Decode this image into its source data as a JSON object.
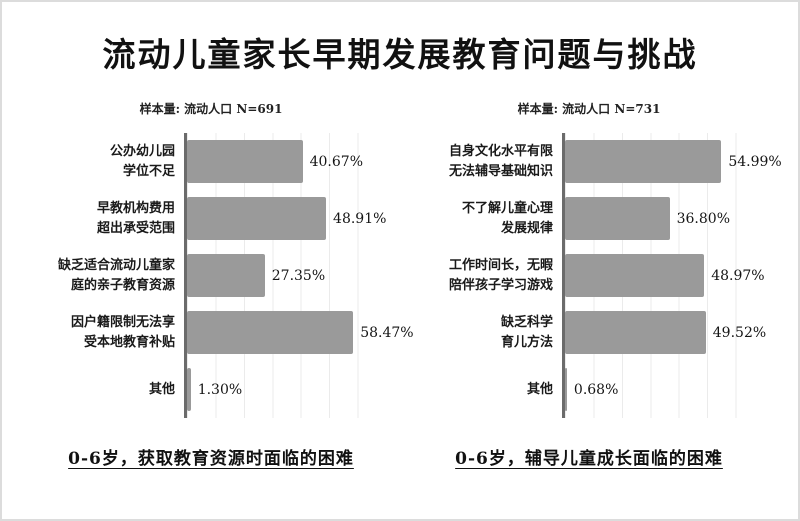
{
  "title": "流动儿童家长早期发展教育问题与挑战",
  "bar_color": "#9a9a9a",
  "chart_data": [
    {
      "type": "bar",
      "orientation": "horizontal",
      "title": "样本量: 流动人口 N=691",
      "caption": "0-6岁，获取教育资源时面临的困难",
      "categories": [
        "公办幼儿园学位不足",
        "早教机构费用超出承受范围",
        "缺乏适合流动儿童家庭的亲子教育资源",
        "因户籍限制无法享受本地教育补贴",
        "其他"
      ],
      "categories_display": [
        "公办幼儿园\n学位不足",
        "早教机构费用\n超出承受范围",
        "缺乏适合流动儿童家\n庭的亲子教育资源",
        "因户籍限制无法享\n受本地教育补贴",
        "其他"
      ],
      "values": [
        40.67,
        48.91,
        27.35,
        58.47,
        1.3
      ],
      "value_labels": [
        "40.67%",
        "48.91%",
        "27.35%",
        "58.47%",
        "1.30%"
      ],
      "xlim": [
        0,
        70
      ],
      "grid": true,
      "grid_interval_pct": 10,
      "bar_color": "#9a9a9a",
      "legend": "none"
    },
    {
      "type": "bar",
      "orientation": "horizontal",
      "title": "样本量: 流动人口 N=731",
      "caption": "0-6岁，辅导儿童成长面临的困难",
      "categories": [
        "自身文化水平有限无法辅导基础知识",
        "不了解儿童心理发展规律",
        "工作时间长，无暇陪伴孩子学习游戏",
        "缺乏科学育儿方法",
        "其他"
      ],
      "categories_display": [
        "自身文化水平有限\n无法辅导基础知识",
        "不了解儿童心理\n发展规律",
        "工作时间长，无暇\n陪伴孩子学习游戏",
        "缺乏科学\n育儿方法",
        "其他"
      ],
      "values": [
        54.99,
        36.8,
        48.97,
        49.52,
        0.68
      ],
      "value_labels": [
        "54.99%",
        "36.80%",
        "48.97%",
        "49.52%",
        "0.68%"
      ],
      "xlim": [
        0,
        70
      ],
      "grid": true,
      "grid_interval_pct": 10,
      "bar_color": "#9a9a9a",
      "legend": "none"
    }
  ]
}
